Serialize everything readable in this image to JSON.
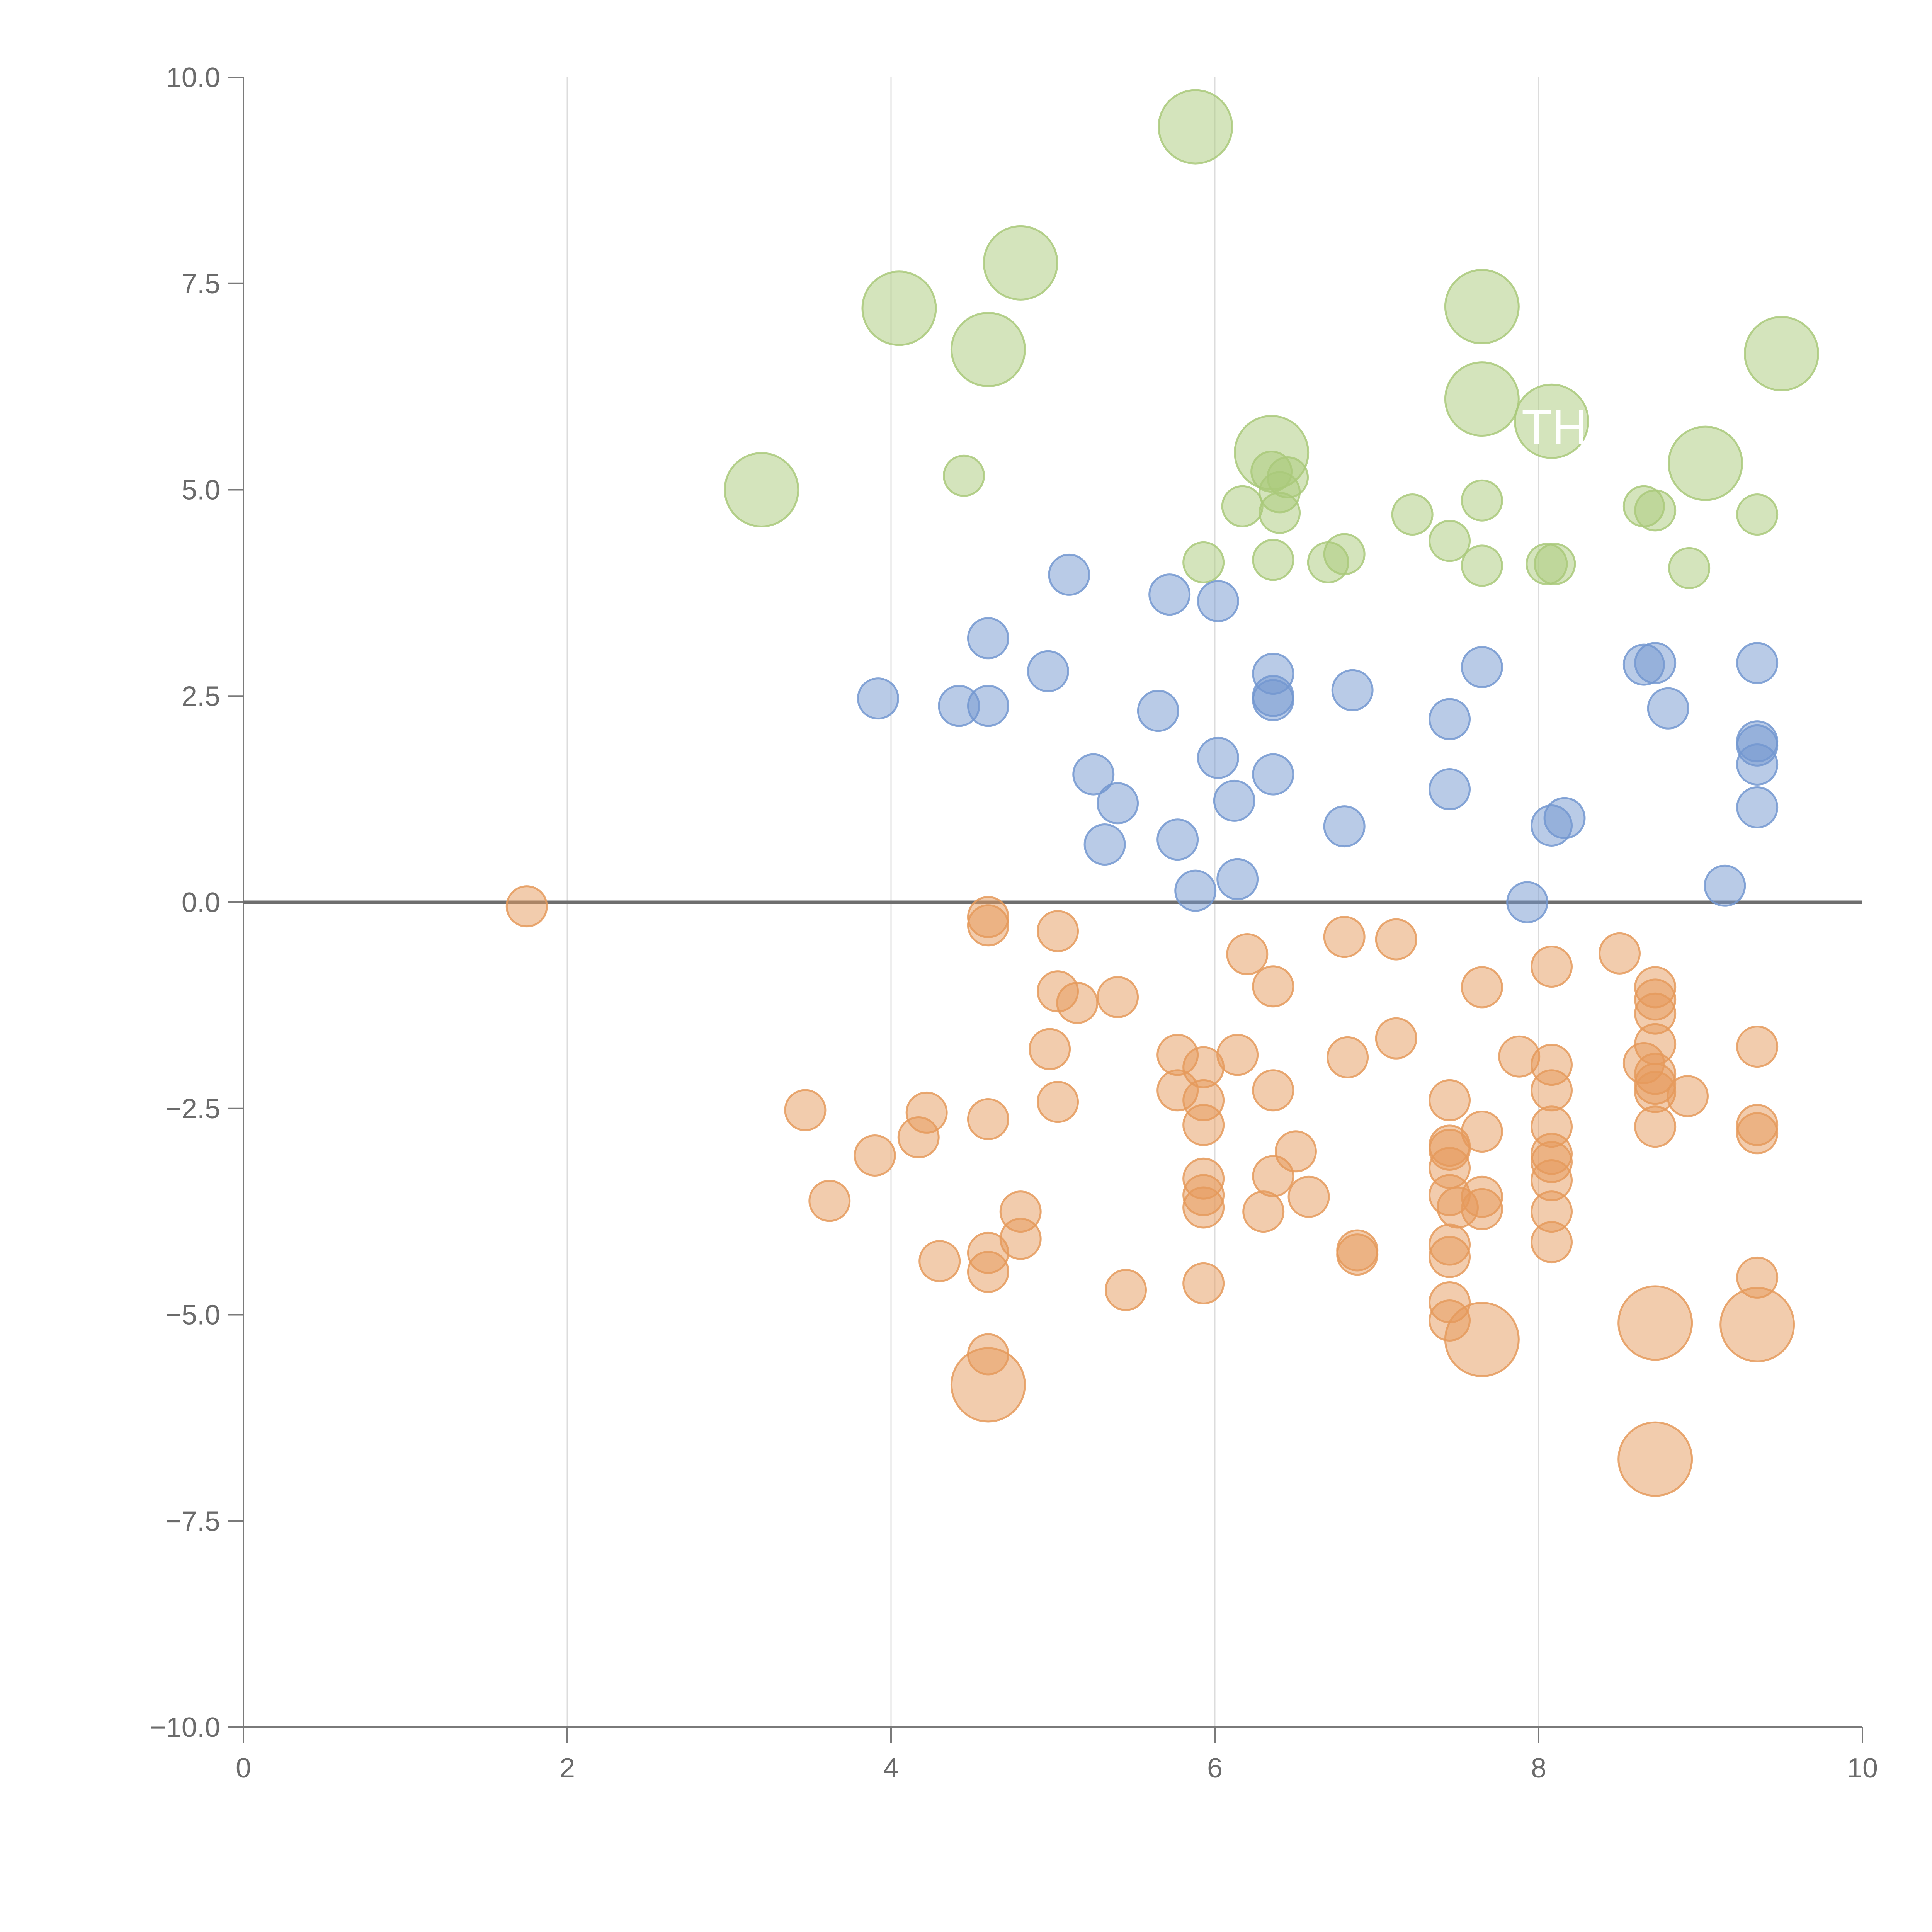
{
  "chart_data": {
    "type": "scatter",
    "title": "",
    "xlabel": "",
    "ylabel": "",
    "xlim": [
      0,
      10
    ],
    "ylim": [
      -10,
      10
    ],
    "x_ticks": [
      0,
      2,
      4,
      6,
      8,
      10
    ],
    "y_ticks": [
      -10,
      -7.5,
      -5,
      -2.5,
      0,
      2.5,
      5,
      7.5,
      10
    ],
    "x_tick_labels": [
      "0",
      "2",
      "4",
      "6",
      "8",
      "10"
    ],
    "y_tick_labels": [
      "−10.0",
      "−7.5",
      "−5.0",
      "−2.5",
      "0.0",
      "2.5",
      "5.0",
      "7.5",
      "10.0"
    ],
    "grid": {
      "vertical": true,
      "horizontal": false
    },
    "zero_line": true,
    "colors": {
      "green": "#a9c97a",
      "blue": "#7398d0",
      "orange": "#e59a5c"
    },
    "annotations": [
      {
        "text": "THA",
        "x": 8.2,
        "y": 5.55
      }
    ],
    "series": [
      {
        "color_key": "green",
        "points": [
          [
            5.88,
            9.4,
            2
          ],
          [
            4.8,
            7.75,
            2
          ],
          [
            4.05,
            7.2,
            2
          ],
          [
            7.65,
            7.22,
            2
          ],
          [
            4.6,
            6.7,
            2
          ],
          [
            9.5,
            6.65,
            2
          ],
          [
            7.65,
            6.1,
            2
          ],
          [
            8.08,
            5.83,
            2
          ],
          [
            6.35,
            5.45,
            2
          ],
          [
            9.03,
            5.32,
            2
          ],
          [
            3.2,
            5.0,
            2
          ],
          [
            4.45,
            5.17,
            1
          ],
          [
            6.35,
            5.22,
            1
          ],
          [
            6.45,
            5.15,
            1
          ],
          [
            6.4,
            4.97,
            1
          ],
          [
            6.4,
            4.72,
            1
          ],
          [
            6.17,
            4.8,
            1
          ],
          [
            7.22,
            4.7,
            1
          ],
          [
            7.65,
            4.87,
            1
          ],
          [
            7.45,
            4.38,
            1
          ],
          [
            8.65,
            4.8,
            1
          ],
          [
            8.72,
            4.75,
            1
          ],
          [
            9.35,
            4.7,
            1
          ],
          [
            5.93,
            4.12,
            1
          ],
          [
            6.36,
            4.15,
            1
          ],
          [
            6.7,
            4.12,
            1
          ],
          [
            6.8,
            4.22,
            1
          ],
          [
            7.65,
            4.08,
            1
          ],
          [
            8.05,
            4.1,
            1
          ],
          [
            8.1,
            4.1,
            1
          ],
          [
            8.93,
            4.05,
            1
          ]
        ]
      },
      {
        "color_key": "blue",
        "points": [
          [
            5.1,
            3.97,
            1
          ],
          [
            5.72,
            3.73,
            1
          ],
          [
            6.02,
            3.65,
            1
          ],
          [
            4.6,
            3.2,
            1
          ],
          [
            4.97,
            2.8,
            1
          ],
          [
            6.36,
            2.77,
            1
          ],
          [
            7.65,
            2.85,
            1
          ],
          [
            8.65,
            2.88,
            1
          ],
          [
            8.72,
            2.9,
            1
          ],
          [
            9.35,
            2.9,
            1
          ],
          [
            3.92,
            2.47,
            1
          ],
          [
            4.42,
            2.38,
            1
          ],
          [
            4.6,
            2.38,
            1
          ],
          [
            5.65,
            2.32,
            1
          ],
          [
            6.36,
            2.45,
            1
          ],
          [
            6.36,
            2.5,
            1
          ],
          [
            6.85,
            2.57,
            1
          ],
          [
            7.45,
            2.22,
            1
          ],
          [
            8.8,
            2.35,
            1
          ],
          [
            9.35,
            1.95,
            1
          ],
          [
            9.35,
            1.9,
            1
          ],
          [
            9.35,
            1.67,
            1
          ],
          [
            6.02,
            1.75,
            1
          ],
          [
            5.25,
            1.55,
            1
          ],
          [
            6.36,
            1.55,
            1
          ],
          [
            7.45,
            1.37,
            1
          ],
          [
            5.4,
            1.2,
            1
          ],
          [
            6.12,
            1.23,
            1
          ],
          [
            9.35,
            1.15,
            1
          ],
          [
            8.08,
            0.93,
            1
          ],
          [
            8.16,
            1.02,
            1
          ],
          [
            6.8,
            0.92,
            1
          ],
          [
            5.32,
            0.7,
            1
          ],
          [
            5.77,
            0.76,
            1
          ],
          [
            5.88,
            0.14,
            1
          ],
          [
            6.14,
            0.28,
            1
          ],
          [
            7.93,
            0.0,
            1
          ],
          [
            9.15,
            0.2,
            1
          ]
        ]
      },
      {
        "color_key": "orange",
        "points": [
          [
            1.75,
            -0.05,
            1
          ],
          [
            4.6,
            -0.18,
            1
          ],
          [
            4.6,
            -0.28,
            1
          ],
          [
            5.03,
            -0.35,
            1
          ],
          [
            6.2,
            -0.63,
            1
          ],
          [
            6.8,
            -0.42,
            1
          ],
          [
            7.12,
            -0.45,
            1
          ],
          [
            8.08,
            -0.78,
            1
          ],
          [
            8.5,
            -0.62,
            1
          ],
          [
            5.03,
            -1.08,
            1
          ],
          [
            5.15,
            -1.22,
            1
          ],
          [
            5.4,
            -1.15,
            1
          ],
          [
            6.36,
            -1.02,
            1
          ],
          [
            7.65,
            -1.03,
            1
          ],
          [
            8.72,
            -1.03,
            1
          ],
          [
            8.72,
            -1.18,
            1
          ],
          [
            8.72,
            -1.35,
            1
          ],
          [
            4.98,
            -1.78,
            1
          ],
          [
            5.77,
            -1.85,
            1
          ],
          [
            5.93,
            -2.0,
            1
          ],
          [
            6.14,
            -1.85,
            1
          ],
          [
            6.82,
            -1.88,
            1
          ],
          [
            7.12,
            -1.65,
            1
          ],
          [
            7.88,
            -1.87,
            1
          ],
          [
            8.08,
            -1.97,
            1
          ],
          [
            8.65,
            -1.95,
            1
          ],
          [
            8.72,
            -1.72,
            1
          ],
          [
            8.72,
            -2.08,
            1
          ],
          [
            8.72,
            -2.2,
            1
          ],
          [
            8.72,
            -2.3,
            1
          ],
          [
            8.92,
            -2.35,
            1
          ],
          [
            9.35,
            -1.75,
            1
          ],
          [
            3.47,
            -2.52,
            1
          ],
          [
            4.22,
            -2.55,
            1
          ],
          [
            4.6,
            -2.63,
            1
          ],
          [
            5.03,
            -2.42,
            1
          ],
          [
            5.77,
            -2.28,
            1
          ],
          [
            5.93,
            -2.4,
            1
          ],
          [
            5.93,
            -2.7,
            1
          ],
          [
            6.36,
            -2.28,
            1
          ],
          [
            7.45,
            -2.4,
            1
          ],
          [
            7.65,
            -2.78,
            1
          ],
          [
            8.08,
            -2.28,
            1
          ],
          [
            8.08,
            -2.72,
            1
          ],
          [
            8.72,
            -2.72,
            1
          ],
          [
            9.35,
            -2.7,
            1
          ],
          [
            9.35,
            -2.8,
            1
          ],
          [
            3.9,
            -3.07,
            1
          ],
          [
            4.17,
            -2.85,
            1
          ],
          [
            3.62,
            -3.62,
            1
          ],
          [
            4.8,
            -3.75,
            1
          ],
          [
            4.8,
            -4.08,
            1
          ],
          [
            5.93,
            -3.35,
            1
          ],
          [
            5.93,
            -3.55,
            1
          ],
          [
            5.93,
            -3.7,
            1
          ],
          [
            6.36,
            -3.32,
            1
          ],
          [
            6.5,
            -3.02,
            1
          ],
          [
            6.58,
            -3.57,
            1
          ],
          [
            6.3,
            -3.75,
            1
          ],
          [
            7.45,
            -2.95,
            1
          ],
          [
            7.45,
            -3.0,
            1
          ],
          [
            7.45,
            -3.22,
            1
          ],
          [
            7.45,
            -3.55,
            1
          ],
          [
            7.5,
            -3.7,
            1
          ],
          [
            7.65,
            -3.57,
            1
          ],
          [
            7.65,
            -3.72,
            1
          ],
          [
            8.08,
            -3.05,
            1
          ],
          [
            8.08,
            -3.15,
            1
          ],
          [
            8.08,
            -3.37,
            1
          ],
          [
            8.08,
            -3.75,
            1
          ],
          [
            8.08,
            -4.12,
            1
          ],
          [
            4.3,
            -4.35,
            1
          ],
          [
            4.6,
            -4.25,
            1
          ],
          [
            4.6,
            -4.48,
            1
          ],
          [
            5.45,
            -4.7,
            1
          ],
          [
            5.93,
            -4.62,
            1
          ],
          [
            6.88,
            -4.22,
            1
          ],
          [
            6.88,
            -4.27,
            1
          ],
          [
            7.45,
            -4.15,
            1
          ],
          [
            7.45,
            -4.3,
            1
          ],
          [
            7.45,
            -4.85,
            1
          ],
          [
            7.45,
            -5.07,
            1
          ],
          [
            9.35,
            -4.55,
            1
          ],
          [
            4.6,
            -5.48,
            1
          ],
          [
            4.6,
            -5.85,
            2
          ],
          [
            7.65,
            -5.3,
            2
          ],
          [
            8.72,
            -5.1,
            2
          ],
          [
            9.35,
            -5.12,
            2
          ],
          [
            8.72,
            -6.75,
            2
          ]
        ]
      }
    ]
  }
}
